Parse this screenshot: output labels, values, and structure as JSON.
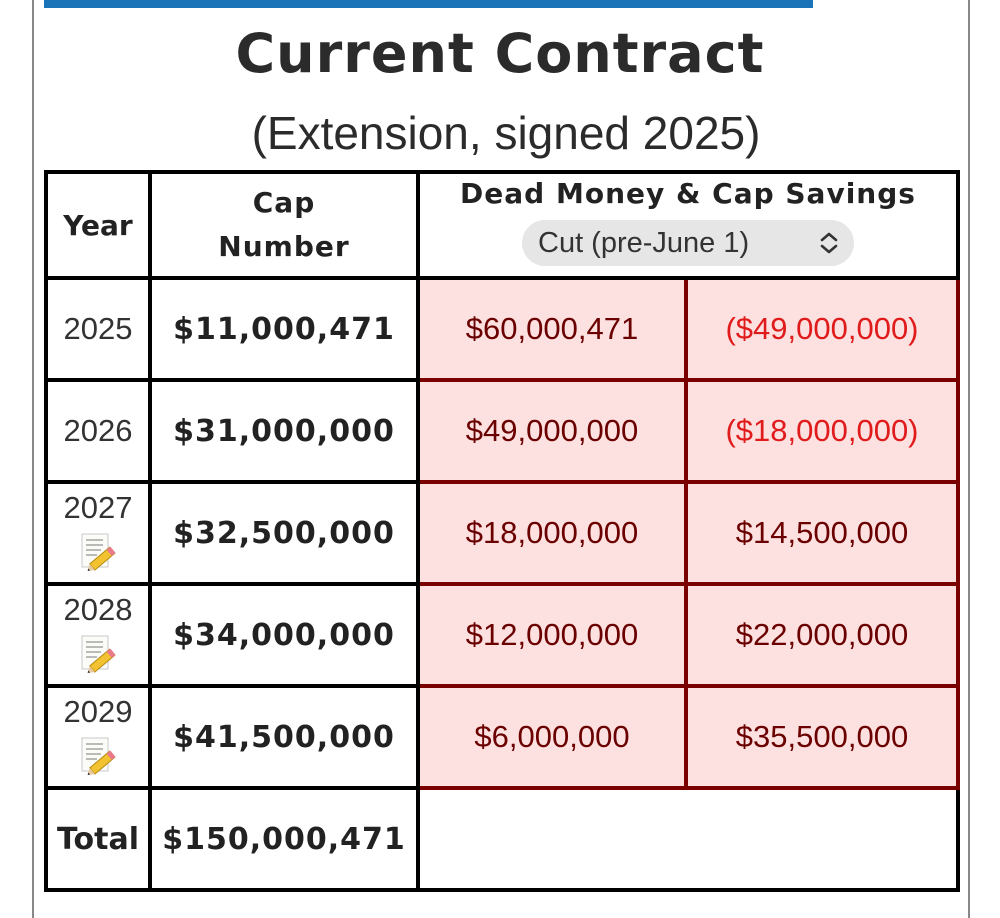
{
  "header": {
    "title": "Current Contract",
    "subtitle": "(Extension, signed 2025)"
  },
  "table": {
    "col_year": "Year",
    "col_cap_line1": "Cap",
    "col_cap_line2": "Number",
    "col_dead": "Dead Money & Cap Savings",
    "select": {
      "selected": "Cut (pre-June 1)",
      "icon": "chevron-up-down-icon"
    },
    "rows": [
      {
        "year": "2025",
        "cap": "$11,000,471",
        "dead": "$60,000,471",
        "savings": "($49,000,000)",
        "savings_negative": true,
        "note_icon": false
      },
      {
        "year": "2026",
        "cap": "$31,000,000",
        "dead": "$49,000,000",
        "savings": "($18,000,000)",
        "savings_negative": true,
        "note_icon": false
      },
      {
        "year": "2027",
        "cap": "$32,500,000",
        "dead": "$18,000,000",
        "savings": "$14,500,000",
        "savings_negative": false,
        "note_icon": true
      },
      {
        "year": "2028",
        "cap": "$34,000,000",
        "dead": "$12,000,000",
        "savings": "$22,000,000",
        "savings_negative": false,
        "note_icon": true
      },
      {
        "year": "2029",
        "cap": "$41,500,000",
        "dead": "$6,000,000",
        "savings": "$35,500,000",
        "savings_negative": false,
        "note_icon": true
      }
    ],
    "total_label": "Total",
    "total_cap": "$150,000,471"
  },
  "colors": {
    "top_bar": "#1b74b8",
    "cell_fill": "#fde0e0",
    "cell_border": "#7a0000",
    "money_text": "#6b0000",
    "negative_text": "#e01b1b"
  },
  "icons": {
    "note": "memo-pencil-icon"
  }
}
